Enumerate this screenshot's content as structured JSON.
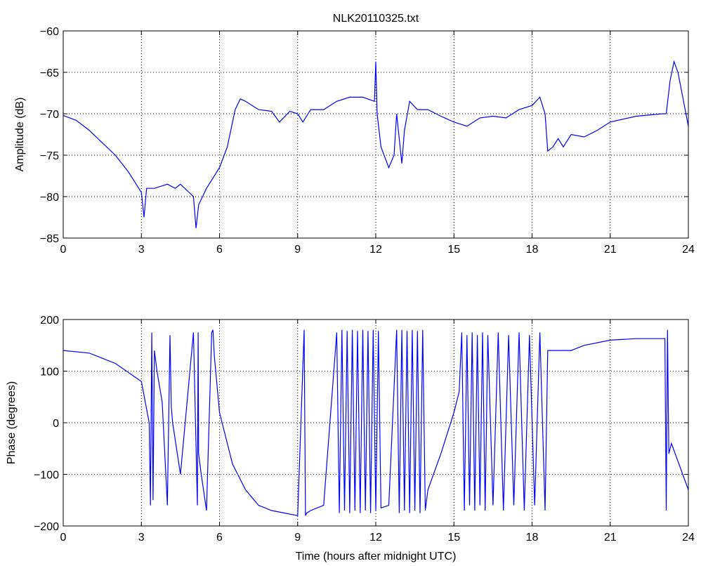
{
  "chart_data": [
    {
      "type": "line",
      "title": "NLK20110325.txt",
      "xlabel": "",
      "ylabel": "Amplitude (dB)",
      "xlim": [
        0,
        24
      ],
      "ylim": [
        -85,
        -60
      ],
      "grid": true,
      "xticks": [
        "0",
        "3",
        "6",
        "9",
        "12",
        "15",
        "18",
        "21",
        "24"
      ],
      "yticks": [
        "-85",
        "-80",
        "-75",
        "-70",
        "-65",
        "-60"
      ],
      "series": [
        {
          "name": "amplitude",
          "color": "#0000ff",
          "x": [
            0,
            0.5,
            1,
            1.5,
            2,
            2.5,
            3,
            3.1,
            3.2,
            3.5,
            4,
            4.3,
            4.5,
            5,
            5.1,
            5.2,
            5.5,
            6,
            6.3,
            6.6,
            6.8,
            7,
            7.5,
            8,
            8.3,
            8.7,
            9,
            9.2,
            9.5,
            10,
            10.5,
            11,
            11.5,
            11.95,
            12,
            12.05,
            12.2,
            12.5,
            12.7,
            12.8,
            13,
            13.1,
            13.3,
            13.6,
            14,
            14.5,
            15,
            15.5,
            16,
            16.5,
            17,
            17.5,
            18,
            18.3,
            18.5,
            18.6,
            18.8,
            19,
            19.2,
            19.5,
            20,
            20.5,
            21,
            22,
            23,
            23.15,
            23.3,
            23.45,
            23.6,
            24
          ],
          "y": [
            -70.2,
            -70.8,
            -72,
            -73.5,
            -75,
            -77,
            -79.5,
            -82.5,
            -79,
            -79,
            -78.5,
            -79,
            -78.5,
            -80,
            -83.8,
            -81,
            -79,
            -76.5,
            -74,
            -69.5,
            -68.2,
            -68.5,
            -69.5,
            -69.7,
            -71,
            -69.7,
            -70,
            -71,
            -69.5,
            -69.5,
            -68.5,
            -68,
            -68,
            -68.5,
            -63.7,
            -70,
            -74,
            -76.5,
            -75,
            -70,
            -76,
            -72,
            -68.5,
            -69.5,
            -69.5,
            -70.3,
            -71,
            -71.5,
            -70.5,
            -70.3,
            -70.5,
            -69.5,
            -69,
            -68,
            -70,
            -74.5,
            -74,
            -73,
            -74,
            -72.5,
            -72.8,
            -72,
            -71,
            -70.3,
            -70,
            -70,
            -66,
            -63.7,
            -65,
            -71.5
          ]
        }
      ]
    },
    {
      "type": "line",
      "title": "",
      "xlabel": "Time (hours after midnight UTC)",
      "ylabel": "Phase (degrees)",
      "xlim": [
        0,
        24
      ],
      "ylim": [
        -200,
        200
      ],
      "grid": true,
      "xticks": [
        "0",
        "3",
        "6",
        "9",
        "12",
        "15",
        "18",
        "21",
        "24"
      ],
      "yticks": [
        "-200",
        "-100",
        "0",
        "100",
        "200"
      ],
      "series": [
        {
          "name": "phase",
          "color": "#0000ff",
          "x": [
            0,
            1,
            2,
            3,
            3.3,
            3.35,
            3.4,
            3.45,
            3.5,
            3.6,
            3.8,
            4,
            4.1,
            4.15,
            4.2,
            4.5,
            5,
            5.15,
            5.18,
            5.2,
            5.3,
            5.5,
            5.7,
            5.75,
            5.8,
            6,
            6.5,
            7,
            7.5,
            8,
            8.5,
            9,
            9.25,
            9.3,
            9.35,
            9.5,
            10,
            10.5,
            10.6,
            10.7,
            10.8,
            10.9,
            11,
            11.1,
            11.2,
            11.3,
            11.4,
            11.5,
            11.6,
            11.7,
            11.8,
            11.9,
            12,
            12.1,
            12.2,
            12.5,
            12.8,
            12.9,
            13,
            13.1,
            13.2,
            13.3,
            13.4,
            13.5,
            13.6,
            13.7,
            13.8,
            13.9,
            14,
            14.5,
            15,
            15.2,
            15.3,
            15.4,
            15.5,
            15.6,
            15.7,
            15.8,
            15.9,
            16,
            16.1,
            16.2,
            16.3,
            16.5,
            16.7,
            16.9,
            17.1,
            17.3,
            17.5,
            17.7,
            17.9,
            18.1,
            18.3,
            18.5,
            18.6,
            19,
            19.5,
            20,
            21,
            22,
            23.1,
            23.15,
            23.2,
            23.25,
            23.35,
            24
          ],
          "y": [
            140,
            135,
            115,
            80,
            0,
            -160,
            175,
            -150,
            140,
            100,
            40,
            -160,
            170,
            30,
            0,
            -100,
            175,
            -160,
            175,
            -60,
            -100,
            -170,
            175,
            180,
            130,
            20,
            -80,
            -130,
            -160,
            -170,
            -175,
            -180,
            180,
            -180,
            -175,
            -170,
            -160,
            175,
            -175,
            180,
            -170,
            178,
            -175,
            180,
            -170,
            178,
            -175,
            180,
            -170,
            178,
            -175,
            180,
            -170,
            178,
            -165,
            -160,
            180,
            -175,
            180,
            -170,
            178,
            -175,
            180,
            -170,
            178,
            -175,
            180,
            -170,
            -130,
            -60,
            20,
            60,
            175,
            -170,
            170,
            -160,
            175,
            -170,
            170,
            -160,
            175,
            -170,
            170,
            -160,
            175,
            -170,
            170,
            -160,
            175,
            -170,
            170,
            -160,
            175,
            -170,
            140,
            140,
            140,
            150,
            160,
            163,
            163,
            -170,
            180,
            -60,
            -40,
            -130
          ]
        }
      ]
    }
  ]
}
